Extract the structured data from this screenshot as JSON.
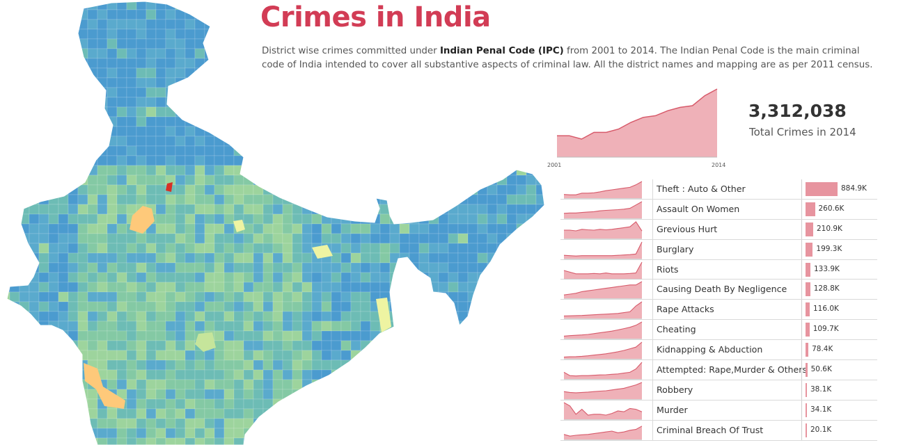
{
  "header": {
    "title": "Crimes in India",
    "desc_before": "District wise crimes committed under ",
    "desc_bold": "Indian Penal Code (IPC)",
    "desc_after": " from 2001 to 2014. The Indian Penal Code is the main criminal code of India intended to cover all substantive aspects of criminal law. All the district names and mapping are as per 2011 census."
  },
  "kpi": {
    "value": "3,312,038",
    "label": "Total Crimes in 2014"
  },
  "trend": {
    "x_start": "2001",
    "x_end": "2014",
    "values": [
      0.72,
      0.72,
      0.7,
      0.74,
      0.74,
      0.76,
      0.8,
      0.83,
      0.84,
      0.87,
      0.89,
      0.9,
      0.96,
      1.0
    ]
  },
  "colors": {
    "accent": "#d23c55",
    "bar": "#e7949f",
    "area": "#efb1b8",
    "line": "#d75a6a"
  },
  "map": {
    "palette": [
      "#4b9bcf",
      "#5aaacd",
      "#6dbcb5",
      "#84c9a4",
      "#9dd49d",
      "#c6e59b",
      "#eef4a2",
      "#fec97a",
      "#f6a05c",
      "#d73027"
    ]
  },
  "chart_data": {
    "type": "bar",
    "categories": [
      "Theft : Auto & Other",
      "Assault On Women",
      "Grevious Hurt",
      "Burglary",
      "Riots",
      "Causing Death By Negligence",
      "Rape Attacks",
      "Cheating",
      "Kidnapping & Abduction",
      "Attempted: Rape,Murder & Others",
      "Robbery",
      "Murder",
      "Criminal Breach Of Trust"
    ],
    "labels": [
      "884.9K",
      "260.6K",
      "210.9K",
      "199.3K",
      "133.9K",
      "128.8K",
      "116.0K",
      "109.7K",
      "78.4K",
      "50.6K",
      "38.1K",
      "34.1K",
      "20.1K"
    ],
    "values": [
      884900,
      260600,
      210900,
      199300,
      133900,
      128800,
      116000,
      109700,
      78400,
      50600,
      38100,
      34100,
      20100
    ],
    "sparklines": [
      [
        0.22,
        0.2,
        0.2,
        0.3,
        0.3,
        0.32,
        0.38,
        0.45,
        0.5,
        0.55,
        0.6,
        0.65,
        0.8,
        1.0
      ],
      [
        0.3,
        0.32,
        0.32,
        0.35,
        0.38,
        0.4,
        0.45,
        0.48,
        0.5,
        0.52,
        0.55,
        0.6,
        0.8,
        1.0
      ],
      [
        0.5,
        0.5,
        0.46,
        0.55,
        0.52,
        0.5,
        0.55,
        0.52,
        0.55,
        0.6,
        0.65,
        0.7,
        1.0,
        0.45
      ],
      [
        0.2,
        0.18,
        0.16,
        0.18,
        0.18,
        0.18,
        0.18,
        0.18,
        0.18,
        0.2,
        0.22,
        0.24,
        0.28,
        1.0
      ],
      [
        0.5,
        0.4,
        0.3,
        0.3,
        0.3,
        0.32,
        0.3,
        0.35,
        0.3,
        0.3,
        0.3,
        0.32,
        0.35,
        1.0
      ],
      [
        0.2,
        0.25,
        0.3,
        0.4,
        0.45,
        0.5,
        0.55,
        0.6,
        0.65,
        0.7,
        0.75,
        0.8,
        0.8,
        1.0
      ],
      [
        0.15,
        0.16,
        0.17,
        0.18,
        0.2,
        0.22,
        0.24,
        0.26,
        0.28,
        0.3,
        0.35,
        0.4,
        0.75,
        1.0
      ],
      [
        0.15,
        0.18,
        0.2,
        0.22,
        0.25,
        0.3,
        0.35,
        0.4,
        0.45,
        0.52,
        0.6,
        0.68,
        0.8,
        1.0
      ],
      [
        0.1,
        0.12,
        0.13,
        0.15,
        0.18,
        0.22,
        0.26,
        0.3,
        0.36,
        0.42,
        0.5,
        0.6,
        0.7,
        1.0
      ],
      [
        0.4,
        0.2,
        0.18,
        0.2,
        0.2,
        0.22,
        0.24,
        0.25,
        0.28,
        0.3,
        0.35,
        0.4,
        0.6,
        1.0
      ],
      [
        0.45,
        0.4,
        0.38,
        0.4,
        0.42,
        0.45,
        0.48,
        0.5,
        0.55,
        0.6,
        0.65,
        0.75,
        0.85,
        1.0
      ],
      [
        1.0,
        0.8,
        0.3,
        0.6,
        0.25,
        0.3,
        0.3,
        0.25,
        0.35,
        0.5,
        0.45,
        0.65,
        0.6,
        0.45
      ],
      [
        0.3,
        0.2,
        0.25,
        0.28,
        0.3,
        0.35,
        0.4,
        0.45,
        0.5,
        0.4,
        0.45,
        0.55,
        0.6,
        0.8
      ]
    ]
  }
}
